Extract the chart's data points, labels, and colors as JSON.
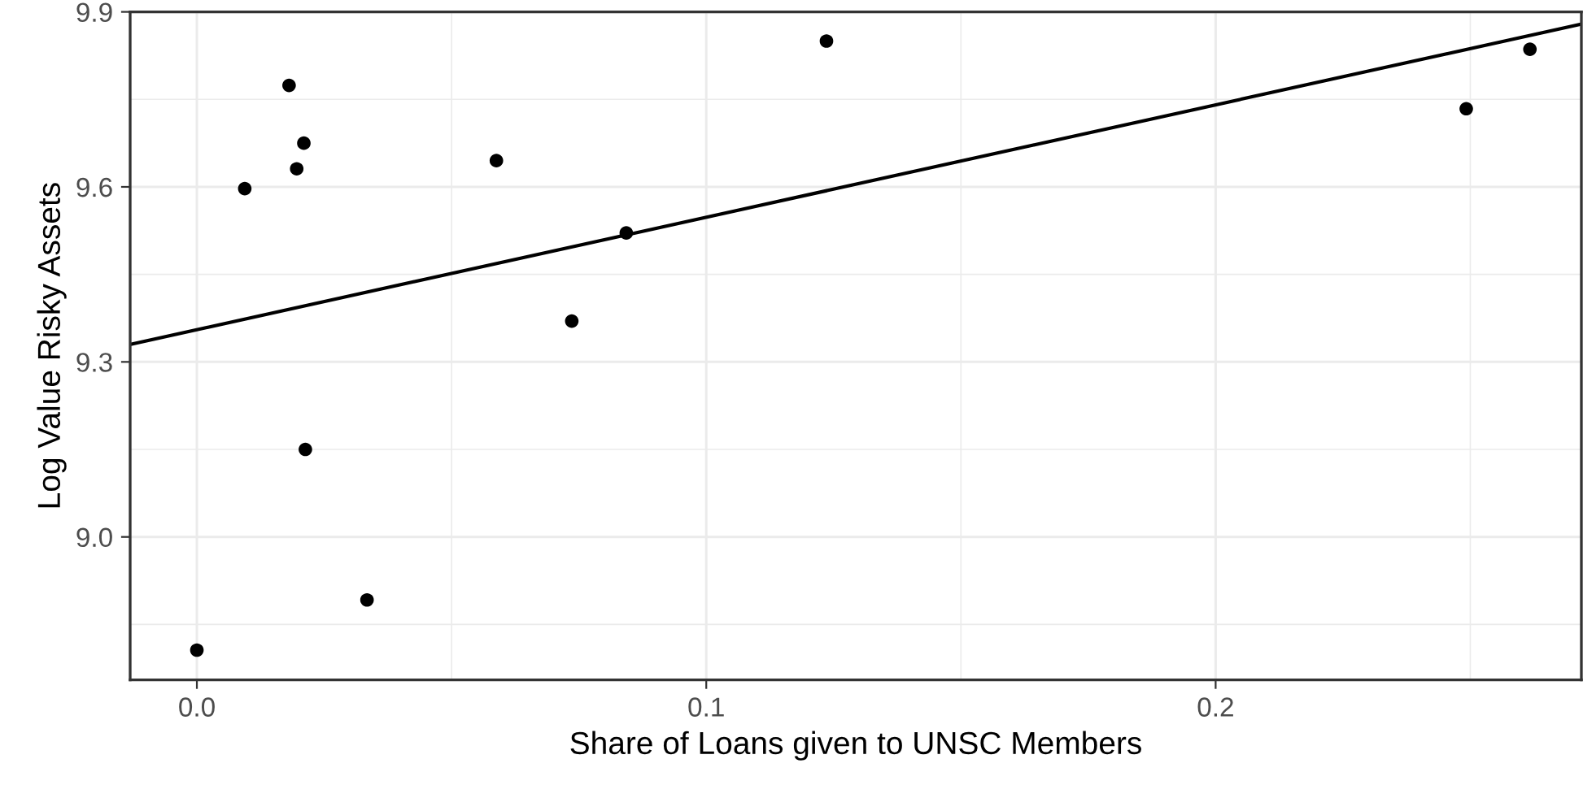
{
  "chart_data": {
    "type": "scatter",
    "xlabel": "Share of Loans given to UNSC Members",
    "ylabel": "Log Value Risky Assets",
    "xlim": [
      -0.0131,
      0.2718
    ],
    "ylim": [
      8.755,
      9.9
    ],
    "xticks": [
      {
        "value": 0.0,
        "label": "0.0"
      },
      {
        "value": 0.05,
        "label": null
      },
      0.1,
      {
        "value": 0.15,
        "label": null
      },
      0.2,
      {
        "value": 0.25,
        "label": null
      }
    ],
    "yticks": [
      {
        "value": 8.85,
        "label": null
      },
      {
        "value": 9.0,
        "label": "9.0"
      },
      {
        "value": 9.15,
        "label": null
      },
      9.3,
      {
        "value": 9.45,
        "label": null
      },
      9.6,
      {
        "value": 9.75,
        "label": null
      },
      9.9
    ],
    "grid": true,
    "marker": "circle",
    "series": [
      {
        "color": "#000000",
        "x": [
          0.0,
          0.0094,
          0.0181,
          0.021,
          0.0196,
          0.0213,
          0.0334,
          0.0588,
          0.0736,
          0.0843,
          0.1236,
          0.2492,
          0.2617
        ],
        "values": [
          8.806,
          9.597,
          9.774,
          9.675,
          9.631,
          9.15,
          8.892,
          9.645,
          9.37,
          9.521,
          9.85,
          9.734,
          9.836
        ]
      },
      {
        "type": "line",
        "color": "#000000",
        "line_style": "solid",
        "marker": "none",
        "x": [
          -0.0131,
          0.2718
        ],
        "values": [
          9.33,
          9.879
        ]
      }
    ]
  }
}
